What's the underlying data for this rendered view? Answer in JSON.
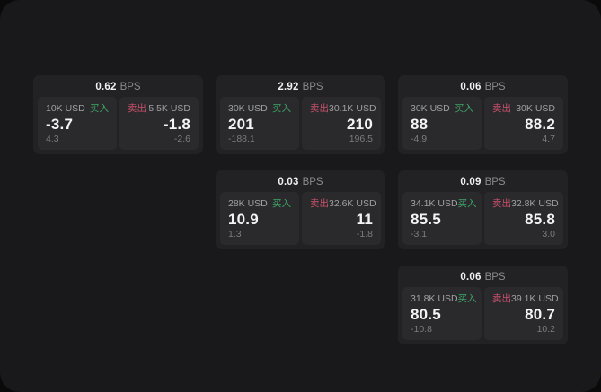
{
  "labels": {
    "buy": "买入",
    "sell": "卖出",
    "bps": "BPS"
  },
  "colors": {
    "background": "#0a0a0b",
    "panel": "#19191b",
    "card": "#222224",
    "tile": "#2a2a2c",
    "buy_green": "#3fa469",
    "sell_red": "#c8516c"
  },
  "cards": [
    {
      "bps": "0.62",
      "buy": {
        "amount": "10K USD",
        "price": "-3.7",
        "delta": "4.3"
      },
      "sell": {
        "amount": "5.5K USD",
        "price": "-1.8",
        "delta": "-2.6"
      }
    },
    {
      "bps": "2.92",
      "buy": {
        "amount": "30K USD",
        "price": "201",
        "delta": "-188.1"
      },
      "sell": {
        "amount": "30.1K USD",
        "price": "210",
        "delta": "196.5"
      }
    },
    {
      "bps": "0.06",
      "buy": {
        "amount": "30K USD",
        "price": "88",
        "delta": "-4.9"
      },
      "sell": {
        "amount": "30K USD",
        "price": "88.2",
        "delta": "4.7"
      }
    },
    {
      "bps": "0.03",
      "buy": {
        "amount": "28K USD",
        "price": "10.9",
        "delta": "1.3"
      },
      "sell": {
        "amount": "32.6K USD",
        "price": "11",
        "delta": "-1.8"
      }
    },
    {
      "bps": "0.09",
      "buy": {
        "amount": "34.1K USD",
        "price": "85.5",
        "delta": "-3.1"
      },
      "sell": {
        "amount": "32.8K USD",
        "price": "85.8",
        "delta": "3.0"
      }
    },
    {
      "bps": "0.06",
      "buy": {
        "amount": "31.8K USD",
        "price": "80.5",
        "delta": "-10.8"
      },
      "sell": {
        "amount": "39.1K USD",
        "price": "80.7",
        "delta": "10.2"
      }
    }
  ]
}
